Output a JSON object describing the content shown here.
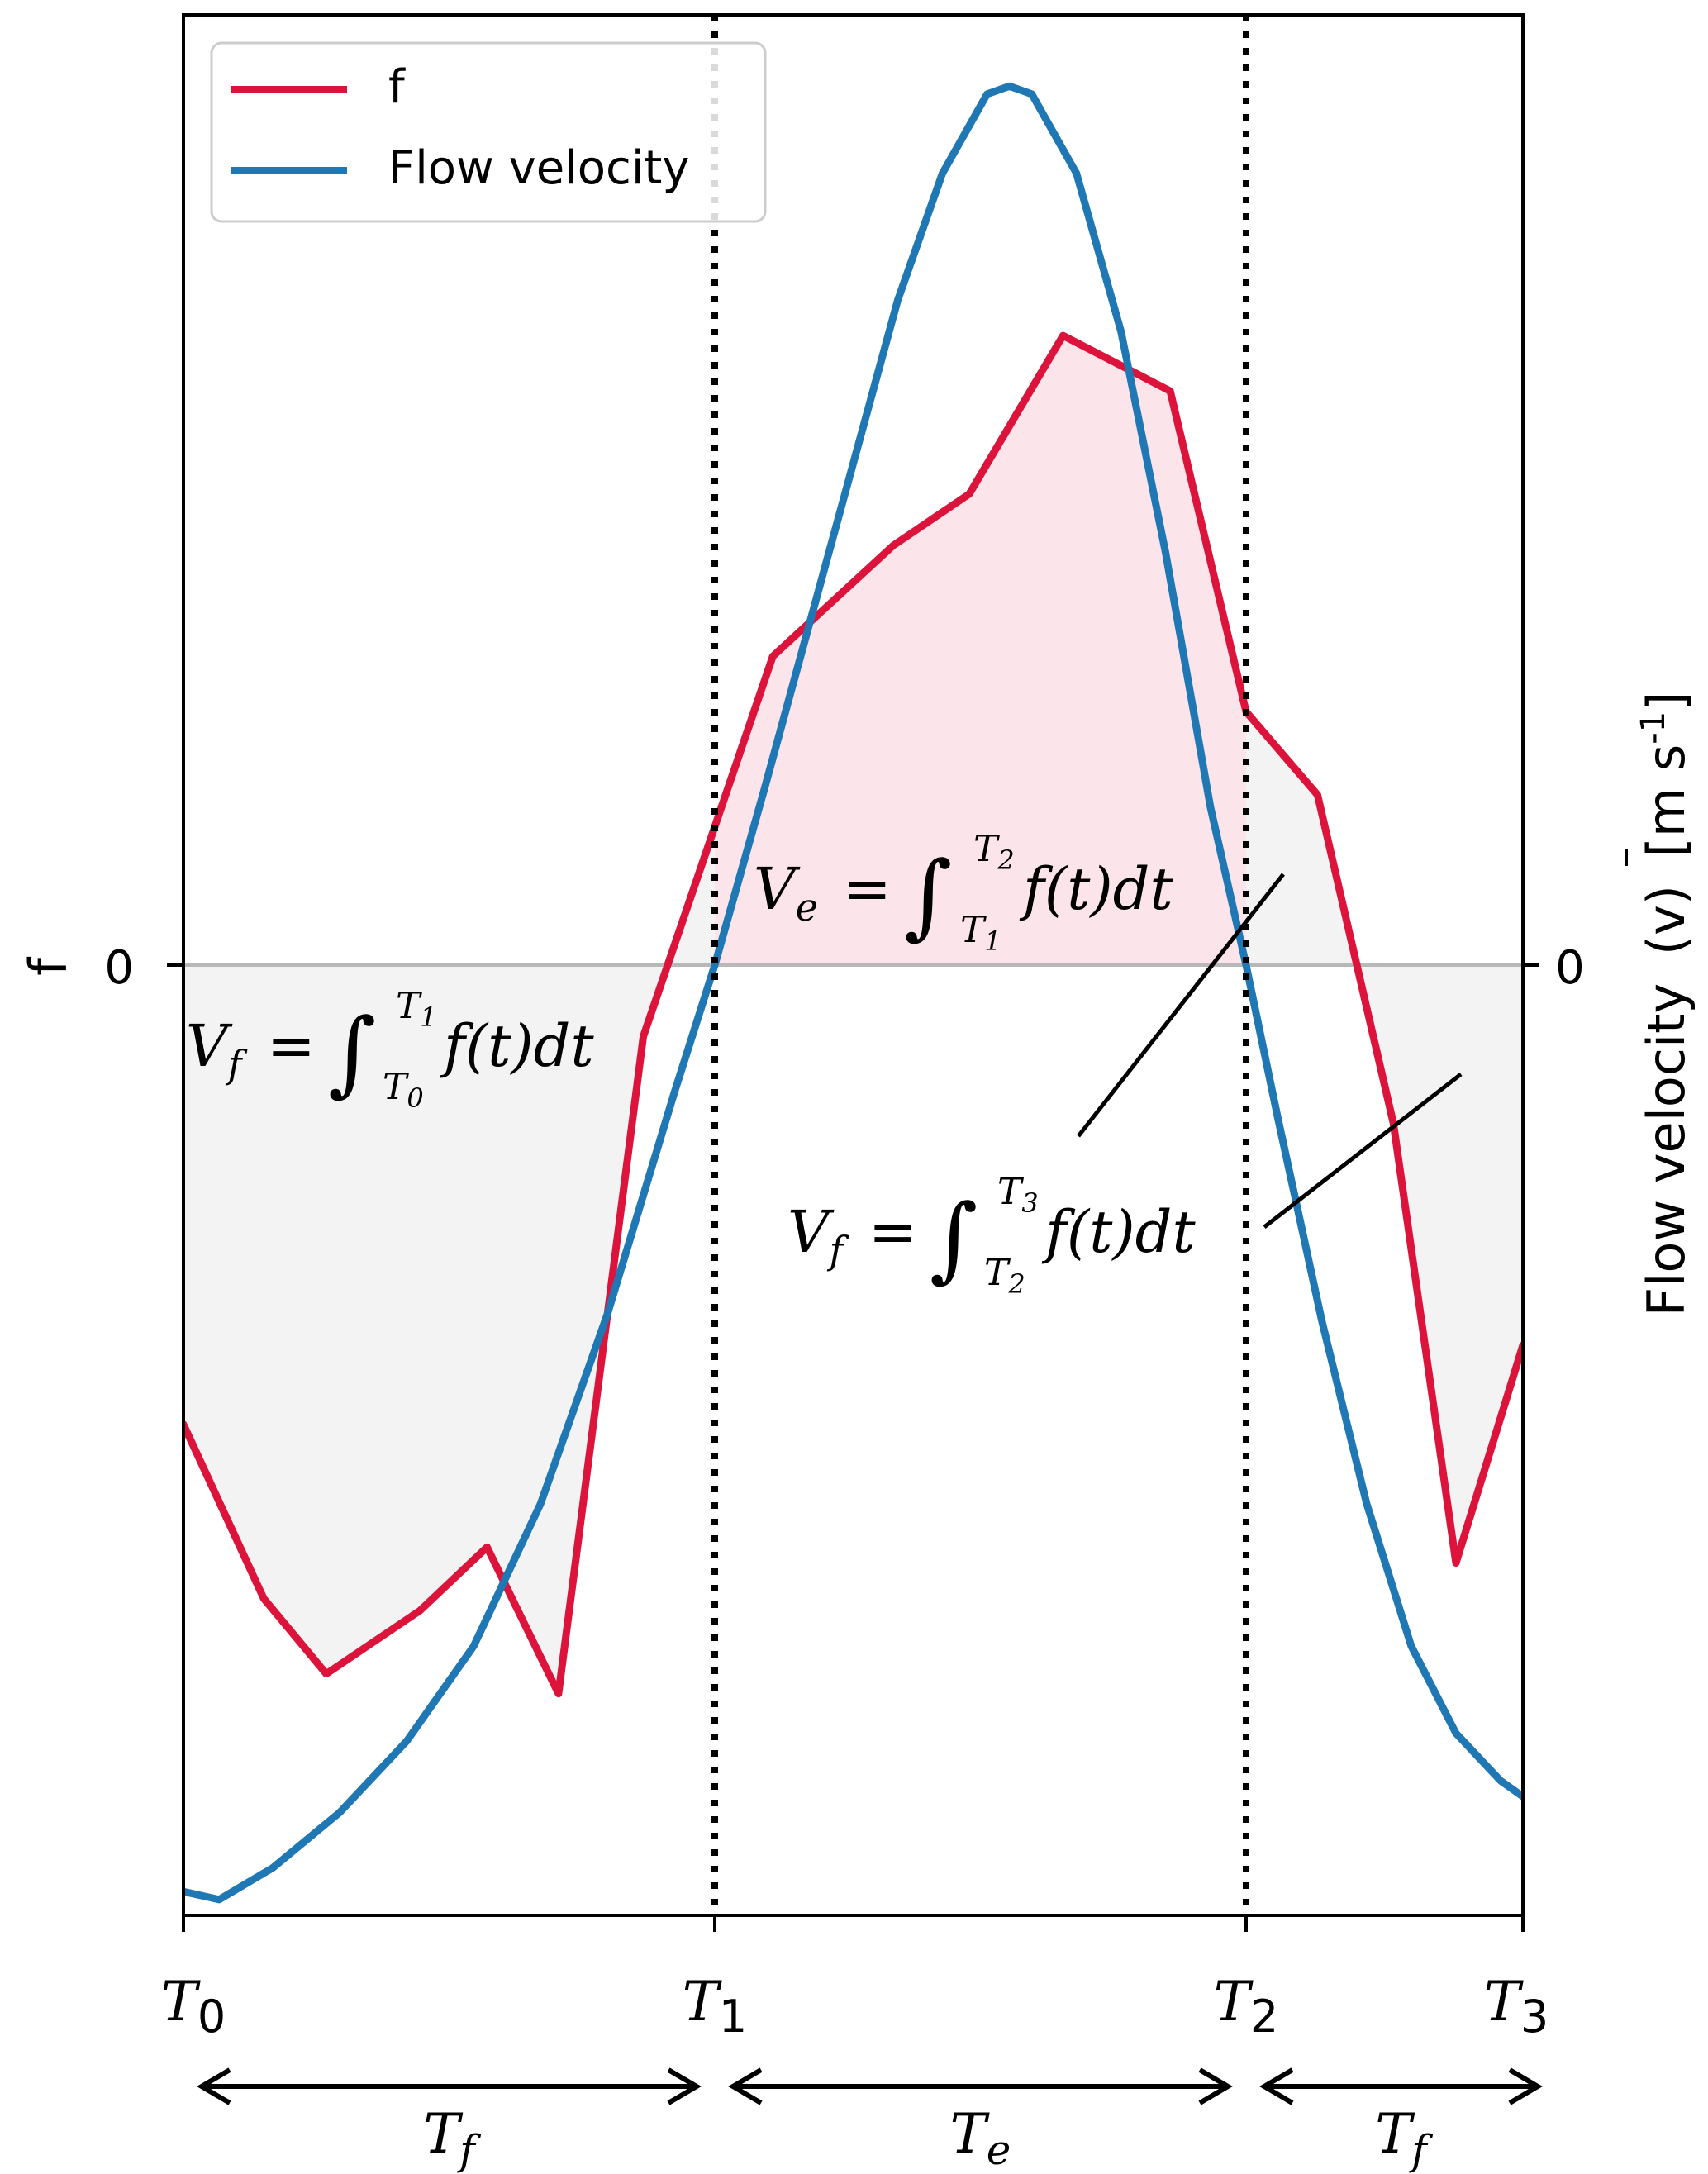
{
  "chart_data": {
    "type": "line",
    "title": "",
    "xlabel": "",
    "ylabel_left": "f",
    "ylabel_right": "Flow velocity",
    "ylabel_right_vbar": "(v)",
    "ylabel_right_unit": "[m s",
    "ylabel_right_exp": "-1",
    "ylabel_right_close": "]",
    "xlim": [
      0,
      3
    ],
    "ylim_left": [
      -1.2,
      1.2
    ],
    "ylim_right": [
      -1.2,
      1.2
    ],
    "zero_tick_left": "0",
    "zero_tick_right": "0",
    "x_ticks": [
      {
        "value": 0,
        "base": "T",
        "sub": "0"
      },
      {
        "value": 1.19,
        "base": "T",
        "sub": "1"
      },
      {
        "value": 2.38,
        "base": "T",
        "sub": "2"
      },
      {
        "value": 3,
        "base": "T",
        "sub": "3"
      }
    ],
    "vlines": [
      1.19,
      2.38
    ],
    "legend": {
      "placement": "top-left",
      "entries": [
        {
          "label": "f",
          "color": "#dc143c"
        },
        {
          "label": "Flow velocity",
          "color": "#1f77b4"
        }
      ]
    },
    "series": [
      {
        "name": "f",
        "color": "#dc143c",
        "x": [
          0,
          0.18,
          0.32,
          0.53,
          0.68,
          0.84,
          1.03,
          1.32,
          1.59,
          1.76,
          1.97,
          2.21,
          2.38,
          2.54,
          2.71,
          2.85,
          3.0
        ],
        "y": [
          -0.58,
          -0.8,
          -0.895,
          -0.815,
          -0.735,
          -0.92,
          -0.09,
          0.39,
          0.53,
          0.595,
          0.795,
          0.725,
          0.32,
          0.215,
          -0.2,
          -0.755,
          -0.48
        ]
      },
      {
        "name": "Flow velocity",
        "color": "#1f77b4",
        "x": [
          0.0,
          0.08,
          0.2,
          0.35,
          0.5,
          0.65,
          0.8,
          0.95,
          1.1,
          1.19,
          1.3,
          1.45,
          1.6,
          1.7,
          1.8,
          1.85,
          1.9,
          2.0,
          2.1,
          2.2,
          2.3,
          2.38,
          2.45,
          2.55,
          2.65,
          2.75,
          2.85,
          2.95,
          3.0
        ],
        "y": [
          -1.17,
          -1.18,
          -1.14,
          -1.07,
          -0.98,
          -0.86,
          -0.68,
          -0.44,
          -0.16,
          0.0,
          0.22,
          0.53,
          0.84,
          1.0,
          1.1,
          1.11,
          1.1,
          1.0,
          0.8,
          0.52,
          0.2,
          0.0,
          -0.19,
          -0.45,
          -0.68,
          -0.86,
          -0.97,
          -1.03,
          -1.05
        ]
      }
    ],
    "annotations": [
      {
        "name": "vf-integral-left",
        "lhs": "V",
        "lhs_sub": "f",
        "upper": "T",
        "upper_sub": "1",
        "lower": "T",
        "lower_sub": "0",
        "integrand": "f(t)dt"
      },
      {
        "name": "ve-integral",
        "lhs": "V",
        "lhs_sub": "e",
        "upper": "T",
        "upper_sub": "2",
        "lower": "T",
        "lower_sub": "1",
        "integrand": "f(t)dt"
      },
      {
        "name": "vf-integral-right",
        "lhs": "V",
        "lhs_sub": "f",
        "upper": "T",
        "upper_sub": "3",
        "lower": "T",
        "lower_sub": "2",
        "integrand": "f(t)dt"
      }
    ],
    "intervals": [
      {
        "from": 0,
        "to": 1.19,
        "base": "T",
        "sub": "f"
      },
      {
        "from": 1.19,
        "to": 2.38,
        "base": "T",
        "sub": "e"
      },
      {
        "from": 2.38,
        "to": 3,
        "base": "T",
        "sub": "f"
      }
    ],
    "fill_colors": {
      "flow": "#f3f3f3",
      "eddy": "#fbe4ea"
    },
    "colors": {
      "axis": "#000000",
      "zero_line": "#b8b8b8"
    }
  }
}
